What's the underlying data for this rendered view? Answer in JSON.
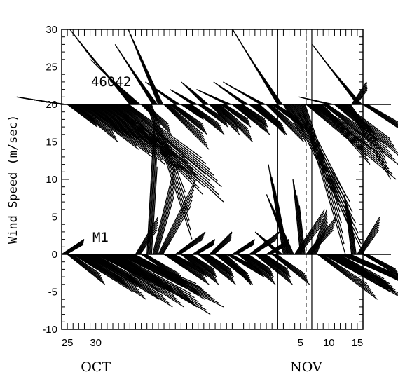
{
  "chart_data": {
    "type": "line",
    "subtype": "wind-vector stick plot",
    "title": "",
    "xlabel": "",
    "ylabel": "Wind Speed (m/sec)",
    "ylim": [
      -10,
      30
    ],
    "xlim": [
      "1991-09-24",
      "1991-11-16"
    ],
    "yticks": [
      -10,
      -5,
      0,
      5,
      10,
      15,
      20,
      25,
      30
    ],
    "xticks": [
      {
        "date": "1991-09-25",
        "label": "25"
      },
      {
        "date": "1991-09-30",
        "label": "30"
      },
      {
        "date": "1991-11-05",
        "label": "5"
      },
      {
        "date": "1991-11-10",
        "label": "10"
      },
      {
        "date": "1991-11-15",
        "label": "15"
      }
    ],
    "month_labels": [
      {
        "date": "1991-09-30",
        "label": "OCT"
      },
      {
        "date": "1991-11-06",
        "label": "NOV"
      }
    ],
    "reference_lines": [
      {
        "date": "1991-11-01",
        "style": "solid"
      },
      {
        "date": "1991-11-07",
        "style": "solid"
      },
      {
        "date": "1991-11-06",
        "style": "dashed"
      }
    ],
    "series": [
      {
        "name": "46042",
        "baseline": 20,
        "sticks": [
          {
            "date": "1991-09-24",
            "u": -6,
            "v": 1
          },
          {
            "date": "1991-09-25",
            "u": 4,
            "v": -3
          },
          {
            "date": "1991-09-26",
            "u": 6,
            "v": -5
          },
          {
            "date": "1991-09-27",
            "u": 8,
            "v": -6
          },
          {
            "date": "1991-09-28",
            "u": 9,
            "v": -7
          },
          {
            "date": "1991-09-29",
            "u": 10,
            "v": -8
          },
          {
            "date": "1991-09-30",
            "u": 11,
            "v": -9
          },
          {
            "date": "1991-10-01",
            "u": 12,
            "v": -10
          },
          {
            "date": "1991-10-02",
            "u": 13,
            "v": -11
          },
          {
            "date": "1991-10-03",
            "u": 12,
            "v": -12
          },
          {
            "date": "1991-10-04",
            "u": 14,
            "v": -13
          },
          {
            "date": "1991-10-05",
            "u": 13,
            "v": -11
          },
          {
            "date": "1991-10-06",
            "u": -8,
            "v": 10
          },
          {
            "date": "1991-10-07",
            "u": -6,
            "v": 6
          },
          {
            "date": "1991-10-08",
            "u": 4,
            "v": -4
          },
          {
            "date": "1991-10-09",
            "u": 6,
            "v": -18
          },
          {
            "date": "1991-10-10",
            "u": -5,
            "v": 8
          },
          {
            "date": "1991-10-11",
            "u": -4,
            "v": 10
          },
          {
            "date": "1991-10-12",
            "u": 6,
            "v": -6
          },
          {
            "date": "1991-10-13",
            "u": 5,
            "v": -4
          },
          {
            "date": "1991-10-14",
            "u": -4,
            "v": 3
          },
          {
            "date": "1991-10-15",
            "u": 3,
            "v": -2
          },
          {
            "date": "1991-10-16",
            "u": 5,
            "v": -4
          },
          {
            "date": "1991-10-17",
            "u": -3,
            "v": 2
          },
          {
            "date": "1991-10-18",
            "u": 4,
            "v": -3
          },
          {
            "date": "1991-10-19",
            "u": -3,
            "v": 3
          },
          {
            "date": "1991-10-20",
            "u": 4,
            "v": -4
          },
          {
            "date": "1991-10-21",
            "u": 5,
            "v": -5
          },
          {
            "date": "1991-10-22",
            "u": 4,
            "v": -3
          },
          {
            "date": "1991-10-23",
            "u": -4,
            "v": 2
          },
          {
            "date": "1991-10-24",
            "u": 5,
            "v": -4
          },
          {
            "date": "1991-10-25",
            "u": 4,
            "v": -3
          },
          {
            "date": "1991-10-26",
            "u": -4,
            "v": 3
          },
          {
            "date": "1991-10-27",
            "u": 5,
            "v": -4
          },
          {
            "date": "1991-10-28",
            "u": 4,
            "v": -4
          },
          {
            "date": "1991-10-29",
            "u": -5,
            "v": 3
          },
          {
            "date": "1991-10-30",
            "u": 5,
            "v": -5
          },
          {
            "date": "1991-10-31",
            "u": 4,
            "v": -3
          },
          {
            "date": "1991-11-01",
            "u": -6,
            "v": 10
          },
          {
            "date": "1991-11-02",
            "u": 3,
            "v": -5
          },
          {
            "date": "1991-11-03",
            "u": 10,
            "v": -20
          },
          {
            "date": "1991-11-04",
            "u": 8,
            "v": -18
          },
          {
            "date": "1991-11-05",
            "u": 6,
            "v": -20
          },
          {
            "date": "1991-11-06",
            "u": 12,
            "v": -10
          },
          {
            "date": "1991-11-07",
            "u": 8,
            "v": -6
          },
          {
            "date": "1991-11-08",
            "u": 7,
            "v": -8
          },
          {
            "date": "1991-11-09",
            "u": 10,
            "v": -8
          },
          {
            "date": "1991-11-10",
            "u": -4,
            "v": 1
          },
          {
            "date": "1991-11-11",
            "u": 6,
            "v": -5
          },
          {
            "date": "1991-11-12",
            "u": 8,
            "v": -7
          },
          {
            "date": "1991-11-13",
            "u": 6,
            "v": -10
          },
          {
            "date": "1991-11-14",
            "u": 2,
            "v": 3
          },
          {
            "date": "1991-11-15",
            "u": -6,
            "v": 8
          },
          {
            "date": "1991-11-16",
            "u": 6,
            "v": -4
          }
        ]
      },
      {
        "name": "M1",
        "baseline": 0,
        "sticks": [
          {
            "date": "1991-09-24",
            "u": 3,
            "v": 2
          },
          {
            "date": "1991-09-25",
            "u": 5,
            "v": -4
          },
          {
            "date": "1991-09-26",
            "u": 8,
            "v": -5
          },
          {
            "date": "1991-09-27",
            "u": 9,
            "v": -6
          },
          {
            "date": "1991-09-28",
            "u": 10,
            "v": -6
          },
          {
            "date": "1991-09-29",
            "u": 11,
            "v": -7
          },
          {
            "date": "1991-09-30",
            "u": 12,
            "v": -6
          },
          {
            "date": "1991-10-01",
            "u": 11,
            "v": -7
          },
          {
            "date": "1991-10-02",
            "u": 12,
            "v": -7
          },
          {
            "date": "1991-10-03",
            "u": 13,
            "v": -8
          },
          {
            "date": "1991-10-04",
            "u": 14,
            "v": -7
          },
          {
            "date": "1991-10-05",
            "u": 12,
            "v": -6
          },
          {
            "date": "1991-10-06",
            "u": 10,
            "v": -6
          },
          {
            "date": "1991-10-07",
            "u": 3,
            "v": 5
          },
          {
            "date": "1991-10-08",
            "u": 6,
            "v": -4
          },
          {
            "date": "1991-10-09",
            "u": 1,
            "v": 18
          },
          {
            "date": "1991-10-10",
            "u": 3,
            "v": 12
          },
          {
            "date": "1991-10-11",
            "u": 5,
            "v": 10
          },
          {
            "date": "1991-10-12",
            "u": 6,
            "v": -4
          },
          {
            "date": "1991-10-13",
            "u": 5,
            "v": -3
          },
          {
            "date": "1991-10-14",
            "u": 4,
            "v": 3
          },
          {
            "date": "1991-10-15",
            "u": 5,
            "v": -4
          },
          {
            "date": "1991-10-16",
            "u": 4,
            "v": -3
          },
          {
            "date": "1991-10-17",
            "u": 3,
            "v": 2
          },
          {
            "date": "1991-10-18",
            "u": 5,
            "v": -4
          },
          {
            "date": "1991-10-19",
            "u": 4,
            "v": -3
          },
          {
            "date": "1991-10-20",
            "u": 3,
            "v": 3
          },
          {
            "date": "1991-10-21",
            "u": 5,
            "v": -4
          },
          {
            "date": "1991-10-22",
            "u": 4,
            "v": -4
          },
          {
            "date": "1991-10-23",
            "u": 5,
            "v": -3
          },
          {
            "date": "1991-10-24",
            "u": 3,
            "v": 2
          },
          {
            "date": "1991-10-25",
            "u": 5,
            "v": -4
          },
          {
            "date": "1991-10-26",
            "u": 4,
            "v": -3
          },
          {
            "date": "1991-10-27",
            "u": 4,
            "v": 3
          },
          {
            "date": "1991-10-28",
            "u": 5,
            "v": -4
          },
          {
            "date": "1991-10-29",
            "u": 4,
            "v": -3
          },
          {
            "date": "1991-10-30",
            "u": 3,
            "v": 2
          },
          {
            "date": "1991-10-31",
            "u": 5,
            "v": -4
          },
          {
            "date": "1991-11-01",
            "u": -3,
            "v": 3
          },
          {
            "date": "1991-11-02",
            "u": -2,
            "v": 12
          },
          {
            "date": "1991-11-03",
            "u": -3,
            "v": 8
          },
          {
            "date": "1991-11-04",
            "u": 4,
            "v": 6
          },
          {
            "date": "1991-11-05",
            "u": -1,
            "v": 10
          },
          {
            "date": "1991-11-06",
            "u": 4,
            "v": 5
          },
          {
            "date": "1991-11-07",
            "u": 2,
            "v": 6
          },
          {
            "date": "1991-11-08",
            "u": 8,
            "v": -6
          },
          {
            "date": "1991-11-09",
            "u": 9,
            "v": -5
          },
          {
            "date": "1991-11-10",
            "u": 10,
            "v": -6
          },
          {
            "date": "1991-11-11",
            "u": 8,
            "v": -5
          },
          {
            "date": "1991-11-12",
            "u": 9,
            "v": -4
          },
          {
            "date": "1991-11-13",
            "u": 10,
            "v": -5
          },
          {
            "date": "1991-11-14",
            "u": -1,
            "v": 8
          },
          {
            "date": "1991-11-15",
            "u": 3,
            "v": 5
          },
          {
            "date": "1991-11-16",
            "u": 5,
            "v": -3
          }
        ]
      }
    ]
  }
}
